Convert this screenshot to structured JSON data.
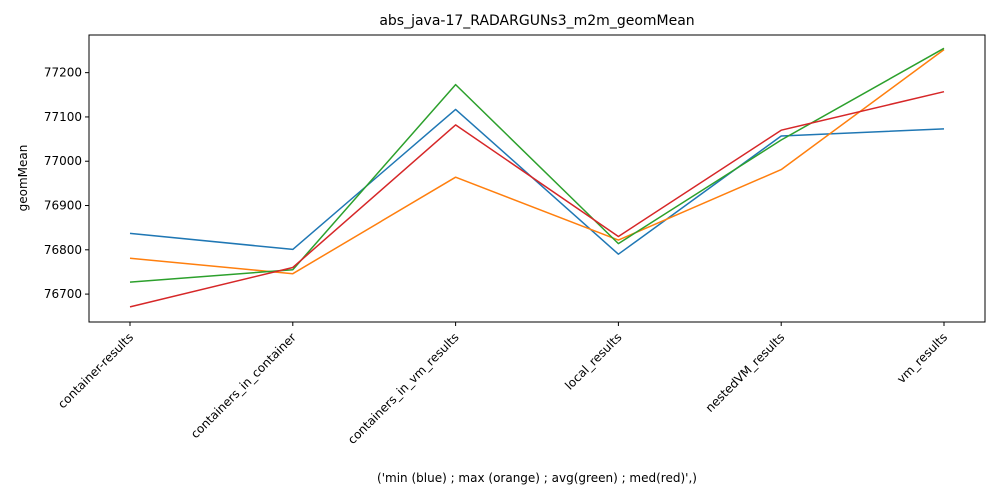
{
  "chart_data": {
    "type": "line",
    "title": "abs_java-17_RADARGUNs3_m2m_geomMean",
    "xlabel": "('min (blue) ; max (orange) ; avg(green) ; med(red)',)",
    "ylabel": "geomMean",
    "categories": [
      "container-results",
      "containers_in_container",
      "containers_in_vm_results",
      "local_results",
      "nestedVM_results",
      "vm_results"
    ],
    "ylim": [
      76637,
      77285
    ],
    "yticks": [
      76700,
      76800,
      76900,
      77000,
      77100,
      77200
    ],
    "grid": false,
    "legend": "none",
    "series": [
      {
        "color": "#1f77b4",
        "values": [
          76837,
          76801,
          77117,
          76790,
          77057,
          77073
        ]
      },
      {
        "color": "#ff7f0e",
        "values": [
          76781,
          76746,
          76964,
          76822,
          76981,
          77252
        ]
      },
      {
        "color": "#2ca02c",
        "values": [
          76727,
          76755,
          77173,
          76814,
          77048,
          77255
        ]
      },
      {
        "color": "#d62728",
        "values": [
          76671,
          76760,
          77082,
          76830,
          77070,
          77157
        ]
      }
    ]
  }
}
